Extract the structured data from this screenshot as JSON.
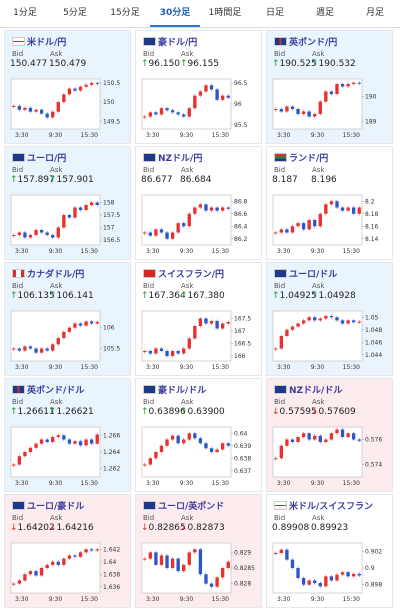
{
  "tabs": {
    "items": [
      "1分足",
      "5分足",
      "15分足",
      "30分足",
      "1時間足",
      "日足",
      "週足",
      "月足"
    ],
    "selected": 3
  },
  "labels": {
    "bid": "Bid",
    "ask": "Ask"
  },
  "xticks": [
    "3:30",
    "9:30",
    "15:30"
  ],
  "colors": {
    "up": "#e8312f",
    "down": "#2d56c9",
    "up_tile": "#e9f4fc",
    "down_tile": "#fcecee",
    "flat_tile": "#ffffff"
  },
  "tiles": [
    {
      "name": "米ドル/円",
      "flag": "us",
      "bid": "150.477",
      "ask": "150.479",
      "direction": null,
      "tile": "up_tile",
      "ylim": [
        149.3,
        150.6
      ],
      "yticks": [
        150.5,
        150,
        149.5
      ],
      "closes": [
        149.9,
        149.8,
        149.85,
        149.75,
        149.8,
        149.7,
        149.6,
        149.75,
        150.0,
        150.2,
        150.35,
        150.3,
        150.4,
        150.45,
        150.5,
        150.48
      ]
    },
    {
      "name": "豪ドル/円",
      "flag": "au",
      "bid": "96.150",
      "ask": "96.155",
      "direction": "up",
      "tile": "flat_tile",
      "ylim": [
        95.4,
        96.6
      ],
      "yticks": [
        96.5,
        96,
        95.5
      ],
      "closes": [
        95.7,
        95.8,
        95.75,
        95.9,
        95.85,
        95.8,
        95.75,
        95.7,
        95.9,
        96.2,
        96.3,
        96.45,
        96.35,
        96.1,
        96.2,
        96.15
      ]
    },
    {
      "name": "英ポンド/円",
      "flag": "gb",
      "bid": "190.525",
      "ask": "190.532",
      "direction": "up",
      "tile": "up_tile",
      "ylim": [
        188.7,
        190.7
      ],
      "yticks": [
        190,
        189
      ],
      "closes": [
        189.5,
        189.4,
        189.6,
        189.5,
        189.3,
        189.4,
        189.2,
        189.3,
        189.8,
        190.2,
        190.1,
        190.5,
        190.4,
        190.5,
        190.55,
        190.52
      ]
    },
    {
      "name": "ユーロ/円",
      "flag": "eu",
      "bid": "157.897",
      "ask": "157.901",
      "direction": "up",
      "tile": "up_tile",
      "ylim": [
        156.3,
        158.3
      ],
      "yticks": [
        158,
        157.5,
        157,
        156.5
      ],
      "closes": [
        156.7,
        156.8,
        156.6,
        156.7,
        156.9,
        156.8,
        156.7,
        156.6,
        157.0,
        157.5,
        157.4,
        157.8,
        157.7,
        157.9,
        158.0,
        157.9
      ]
    },
    {
      "name": "NZドル/円",
      "flag": "nz",
      "bid": "86.677",
      "ask": "86.684",
      "direction": null,
      "tile": "flat_tile",
      "ylim": [
        86.1,
        86.9
      ],
      "yticks": [
        86.8,
        86.6,
        86.4,
        86.2
      ],
      "closes": [
        86.3,
        86.25,
        86.35,
        86.3,
        86.2,
        86.3,
        86.45,
        86.4,
        86.6,
        86.7,
        86.75,
        86.65,
        86.7,
        86.65,
        86.7,
        86.68
      ]
    },
    {
      "name": "ランド/円",
      "flag": "za",
      "bid": "8.187",
      "ask": "8.196",
      "direction": null,
      "tile": "flat_tile",
      "ylim": [
        8.13,
        8.21
      ],
      "yticks": [
        8.2,
        8.18,
        8.16,
        8.14
      ],
      "closes": [
        8.15,
        8.155,
        8.15,
        8.16,
        8.165,
        8.155,
        8.17,
        8.16,
        8.18,
        8.195,
        8.2,
        8.19,
        8.185,
        8.19,
        8.18,
        8.19
      ]
    },
    {
      "name": "カナダドル/円",
      "flag": "ca",
      "bid": "106.135",
      "ask": "106.141",
      "direction": "up",
      "tile": "up_tile",
      "ylim": [
        105.2,
        106.4
      ],
      "yticks": [
        106,
        105.5
      ],
      "closes": [
        105.5,
        105.45,
        105.55,
        105.5,
        105.4,
        105.5,
        105.45,
        105.6,
        105.75,
        105.9,
        106.0,
        106.1,
        106.05,
        106.15,
        106.1,
        106.14
      ]
    },
    {
      "name": "スイスフラン/円",
      "flag": "ch",
      "bid": "167.364",
      "ask": "167.380",
      "direction": "up",
      "tile": "flat_tile",
      "ylim": [
        165.8,
        167.8
      ],
      "yticks": [
        167.5,
        167,
        166.5,
        166
      ],
      "closes": [
        166.2,
        166.1,
        166.3,
        166.2,
        166.0,
        166.2,
        166.1,
        166.3,
        166.7,
        167.2,
        167.5,
        167.3,
        167.4,
        167.1,
        167.3,
        167.36
      ]
    },
    {
      "name": "ユーロ/ドル",
      "flag": "eu",
      "bid": "1.04925",
      "ask": "1.04928",
      "direction": "up",
      "tile": "up_tile",
      "ylim": [
        1.043,
        1.051
      ],
      "yticks": [
        1.05,
        1.048,
        1.046,
        1.044
      ],
      "closes": [
        1.045,
        1.047,
        1.048,
        1.0485,
        1.049,
        1.0495,
        1.05,
        1.0495,
        1.0498,
        1.0502,
        1.05,
        1.0495,
        1.049,
        1.0495,
        1.0492,
        1.0493
      ]
    },
    {
      "name": "英ポンド/ドル",
      "flag": "gb",
      "bid": "1.26611",
      "ask": "1.26621",
      "direction": "up",
      "tile": "up_tile",
      "ylim": [
        1.261,
        1.267
      ],
      "yticks": [
        1.266,
        1.264,
        1.262
      ],
      "closes": [
        1.2625,
        1.2635,
        1.264,
        1.2645,
        1.265,
        1.2655,
        1.2652,
        1.2658,
        1.266,
        1.2655,
        1.265,
        1.2653,
        1.2648,
        1.2655,
        1.265,
        1.2661
      ]
    },
    {
      "name": "豪ドル/ドル",
      "flag": "au",
      "bid": "0.63896",
      "ask": "0.63900",
      "direction": "up",
      "tile": "flat_tile",
      "ylim": [
        0.6365,
        0.6405
      ],
      "yticks": [
        0.64,
        0.639,
        0.638,
        0.637
      ],
      "closes": [
        0.6375,
        0.638,
        0.6385,
        0.639,
        0.6395,
        0.6398,
        0.6392,
        0.6395,
        0.64,
        0.6396,
        0.6392,
        0.6388,
        0.6385,
        0.6387,
        0.6392,
        0.639
      ]
    },
    {
      "name": "NZドル/ドル",
      "flag": "nz",
      "bid": "0.57595",
      "ask": "0.57609",
      "direction": "down",
      "tile": "down_tile",
      "ylim": [
        0.573,
        0.577
      ],
      "yticks": [
        0.576,
        0.574
      ],
      "closes": [
        0.5745,
        0.5755,
        0.576,
        0.5758,
        0.5762,
        0.5765,
        0.576,
        0.5763,
        0.5758,
        0.576,
        0.5765,
        0.5768,
        0.5762,
        0.5765,
        0.576,
        0.5759
      ]
    },
    {
      "name": "ユーロ/豪ドル",
      "flag": "eu",
      "bid": "1.64202",
      "ask": "1.64216",
      "direction": "down",
      "tile": "down_tile",
      "ylim": [
        1.635,
        1.643
      ],
      "yticks": [
        1.642,
        1.64,
        1.638,
        1.636
      ],
      "closes": [
        1.6365,
        1.637,
        1.638,
        1.6385,
        1.6378,
        1.639,
        1.6395,
        1.64,
        1.6395,
        1.6405,
        1.641,
        1.6408,
        1.6415,
        1.642,
        1.6418,
        1.642
      ]
    },
    {
      "name": "ユーロ/英ポンド",
      "flag": "eu",
      "bid": "0.82865",
      "ask": "0.82873",
      "direction": "down",
      "tile": "down_tile",
      "ylim": [
        0.8277,
        0.8293
      ],
      "yticks": [
        0.829,
        0.8285,
        0.828
      ],
      "closes": [
        0.8288,
        0.829,
        0.8286,
        0.8289,
        0.8285,
        0.8288,
        0.8284,
        0.8286,
        0.829,
        0.8291,
        0.8283,
        0.828,
        0.8279,
        0.8282,
        0.8285,
        0.8287
      ]
    },
    {
      "name": "米ドル/スイスフラン",
      "flag": "us",
      "bid": "0.89908",
      "ask": "0.89923",
      "direction": null,
      "tile": "flat_tile",
      "ylim": [
        0.897,
        0.903
      ],
      "yticks": [
        0.902,
        0.9,
        0.898
      ],
      "closes": [
        0.9018,
        0.9022,
        0.901,
        0.9,
        0.8988,
        0.898,
        0.8985,
        0.8982,
        0.8978,
        0.899,
        0.8985,
        0.8992,
        0.8995,
        0.899,
        0.8993,
        0.8991
      ]
    }
  ]
}
